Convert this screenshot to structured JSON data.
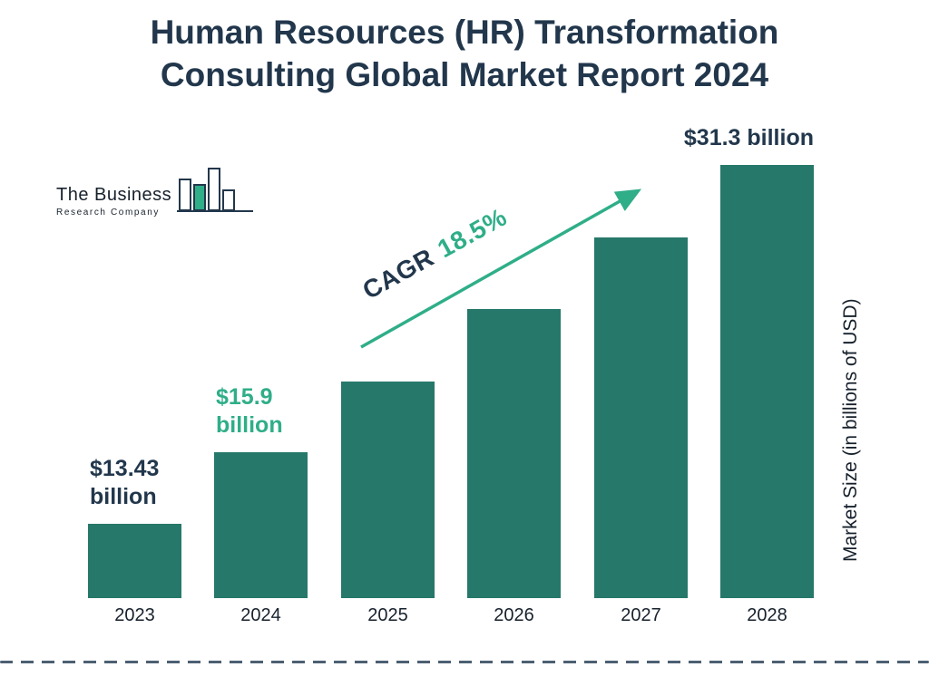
{
  "header": {
    "title_line1": "Human Resources (HR) Transformation",
    "title_line2": "Consulting Global Market Report 2024"
  },
  "logo": {
    "name_line1": "The Business",
    "name_line2": "Research Company"
  },
  "cagr": {
    "label": "CAGR",
    "value": "18.5%"
  },
  "y_axis_label": "Market Size (in billions of USD)",
  "colors": {
    "bar": "#26786a",
    "green": "#2fae88",
    "dark": "#22374c",
    "text_dark": "#17212c",
    "dash": "#4d6073"
  },
  "chart_data": {
    "type": "bar",
    "title": "Human Resources (HR) Transformation Consulting Global Market Report 2024",
    "categories": [
      "2023",
      "2024",
      "2025",
      "2026",
      "2027",
      "2028"
    ],
    "values": [
      13.43,
      15.9,
      18.8,
      22.3,
      26.4,
      31.3
    ],
    "unit": "billions of USD",
    "ylabel": "Market Size (in billions of USD)",
    "cagr_percent": 18.5,
    "grid": false,
    "axis_lines": false,
    "legend": false,
    "value_labels": [
      {
        "index": 0,
        "lines": [
          "$13.43",
          "billion"
        ],
        "color": "dark"
      },
      {
        "index": 1,
        "lines": [
          "$15.9",
          "billion"
        ],
        "color": "green"
      },
      {
        "index": 5,
        "lines": [
          "$31.3 billion"
        ],
        "color": "dark"
      }
    ]
  }
}
